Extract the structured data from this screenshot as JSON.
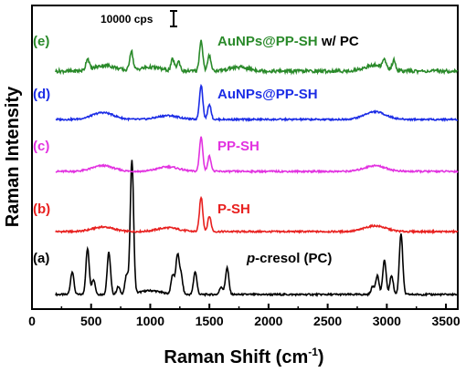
{
  "chart_data": {
    "type": "line",
    "xlabel": "Raman Shift (cm",
    "xlabel_sup": "-1",
    "xlabel_close": ")",
    "ylabel": "Raman Intensity",
    "xlim": [
      0,
      3600
    ],
    "x_ticks": [
      "0",
      "500",
      "1000",
      "1500",
      "2000",
      "2500",
      "3000",
      "3500"
    ],
    "scale_bar": {
      "label": "10000 cps",
      "value_cps": 10000
    },
    "spectra_offset_stacked": true,
    "series": [
      {
        "tag": "(a)",
        "name": "cresol (PC)",
        "name_prefix_italic": "p",
        "name_prefix_dash": "-",
        "color": "#000000",
        "baseline": 0,
        "peaks": [
          [
            340,
            6
          ],
          [
            470,
            12
          ],
          [
            520,
            4
          ],
          [
            650,
            11
          ],
          [
            730,
            2
          ],
          [
            800,
            5
          ],
          [
            845,
            35
          ],
          [
            1190,
            5
          ],
          [
            1230,
            10
          ],
          [
            1260,
            5
          ],
          [
            1380,
            6
          ],
          [
            1600,
            2
          ],
          [
            1650,
            7
          ],
          [
            2880,
            2
          ],
          [
            2920,
            5
          ],
          [
            2980,
            9
          ],
          [
            3040,
            5
          ],
          [
            3120,
            16
          ]
        ],
        "wide_peaks": [
          [
            1000,
            1
          ]
        ]
      },
      {
        "tag": "(b)",
        "name": "P-SH",
        "color": "#e8201f",
        "baseline": 0,
        "peaks": [
          [
            1430,
            9
          ],
          [
            1500,
            4
          ]
        ],
        "wide_peaks": [
          [
            600,
            1.2
          ],
          [
            1150,
            1
          ],
          [
            2900,
            1.5
          ]
        ]
      },
      {
        "tag": "(c)",
        "name": "PP-SH",
        "color": "#e232e0",
        "baseline": 0,
        "peaks": [
          [
            1430,
            9
          ],
          [
            1500,
            4
          ]
        ],
        "wide_peaks": [
          [
            600,
            1.5
          ],
          [
            1150,
            1.2
          ],
          [
            2900,
            1.5
          ]
        ]
      },
      {
        "tag": "(d)",
        "name": "AuNPs@PP-SH",
        "color": "#1c2de6",
        "baseline": 0,
        "peaks": [
          [
            1430,
            9
          ],
          [
            1500,
            4
          ]
        ],
        "wide_peaks": [
          [
            600,
            1.8
          ],
          [
            1150,
            1
          ],
          [
            2900,
            2
          ]
        ]
      },
      {
        "tag": "(e)",
        "name": "AuNPs@PP-SH",
        "name_suffix": " w/ PC",
        "suffix_color": "#000000",
        "color": "#2a8a2a",
        "baseline": 0,
        "peaks": [
          [
            470,
            3
          ],
          [
            840,
            5
          ],
          [
            1190,
            3
          ],
          [
            1240,
            2.5
          ],
          [
            1430,
            8
          ],
          [
            1500,
            4
          ],
          [
            2980,
            2
          ],
          [
            3060,
            2.5
          ]
        ],
        "wide_peaks": [
          [
            620,
            1.5
          ],
          [
            1000,
            1
          ],
          [
            1750,
            1
          ],
          [
            2900,
            1.5
          ]
        ]
      }
    ]
  }
}
